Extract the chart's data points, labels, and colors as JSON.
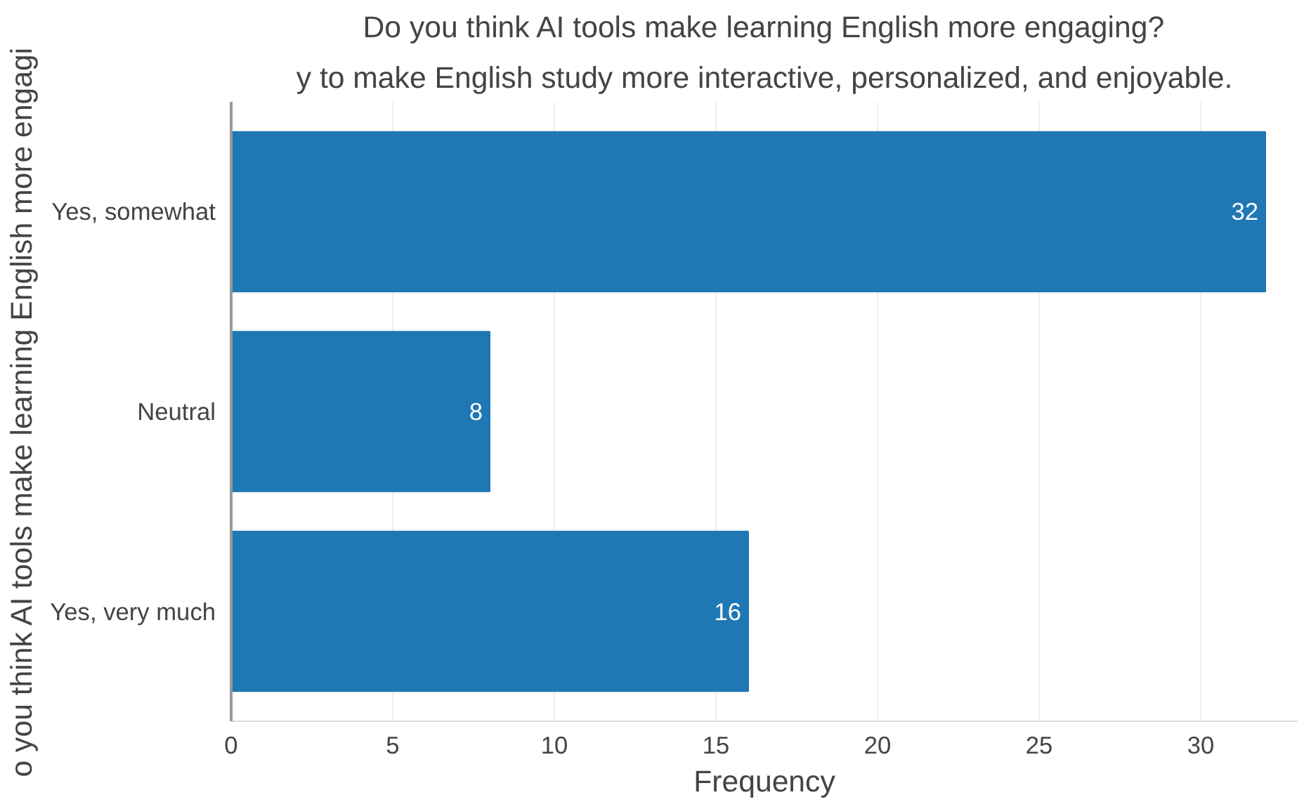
{
  "chart_data": {
    "type": "bar",
    "orientation": "horizontal",
    "title": "Do you think AI tools make learning English more engaging?",
    "annotations": [
      "y to make English study more interactive, personalized, and enjoyable."
    ],
    "xlabel": "Frequency",
    "ylabel": "o you think AI tools make learning English more engagi",
    "categories": [
      "Yes, somewhat",
      "Neutral",
      "Yes, very much"
    ],
    "values": [
      32,
      8,
      16
    ],
    "color": "#1f77b4",
    "xlim": [
      0,
      33
    ],
    "xticks": [
      0,
      5,
      10,
      15,
      20,
      25,
      30
    ],
    "grid": "x",
    "data_labels": true
  }
}
